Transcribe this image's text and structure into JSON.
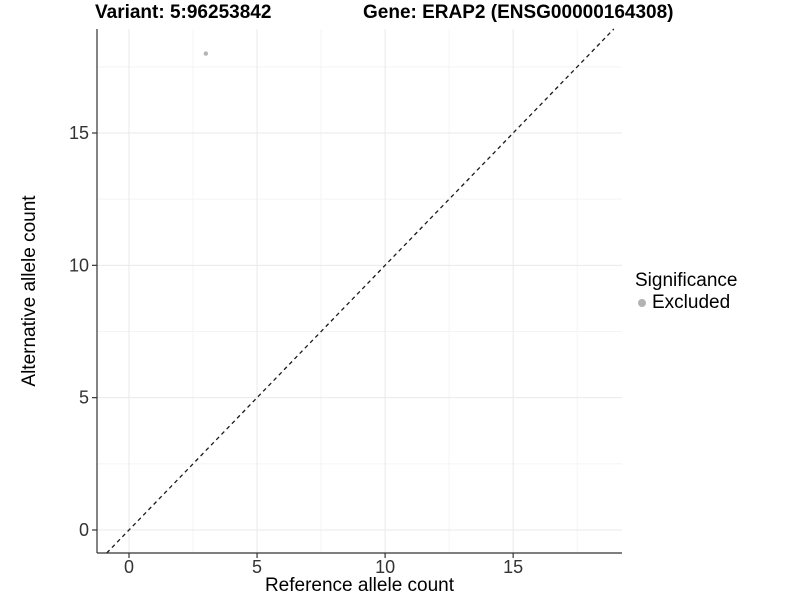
{
  "chart_data": {
    "type": "scatter",
    "title_left": "Variant: 5:96253842",
    "title_right": "Gene: ERAP2 (ENSG00000164308)",
    "xlabel": "Reference allele count",
    "ylabel": "Alternative allele count",
    "x_ticks": [
      0,
      5,
      10,
      15
    ],
    "y_ticks": [
      0,
      5,
      10,
      15
    ],
    "xlim": [
      -1.25,
      19.25
    ],
    "ylim": [
      -0.87,
      18.93
    ],
    "grid": {
      "major_breaks": [
        0,
        5,
        10,
        15
      ],
      "minor_breaks": [
        2.5,
        7.5,
        12.5,
        17.5
      ],
      "major_color": "#e9e9e9",
      "minor_color": "#f4f4f4"
    },
    "reference_line": {
      "type": "identity",
      "style": "dashed",
      "color": "#1a1a1a"
    },
    "axis_color": "#333333",
    "tick_label_color": "#333333",
    "series": [
      {
        "name": "Excluded",
        "color": "#b5b5b5",
        "points": [
          {
            "x": 3,
            "y": 18
          }
        ]
      }
    ],
    "legend": {
      "title": "Significance",
      "position": "right",
      "items": [
        {
          "label": "Excluded",
          "color": "#b3b3b3"
        }
      ]
    }
  }
}
